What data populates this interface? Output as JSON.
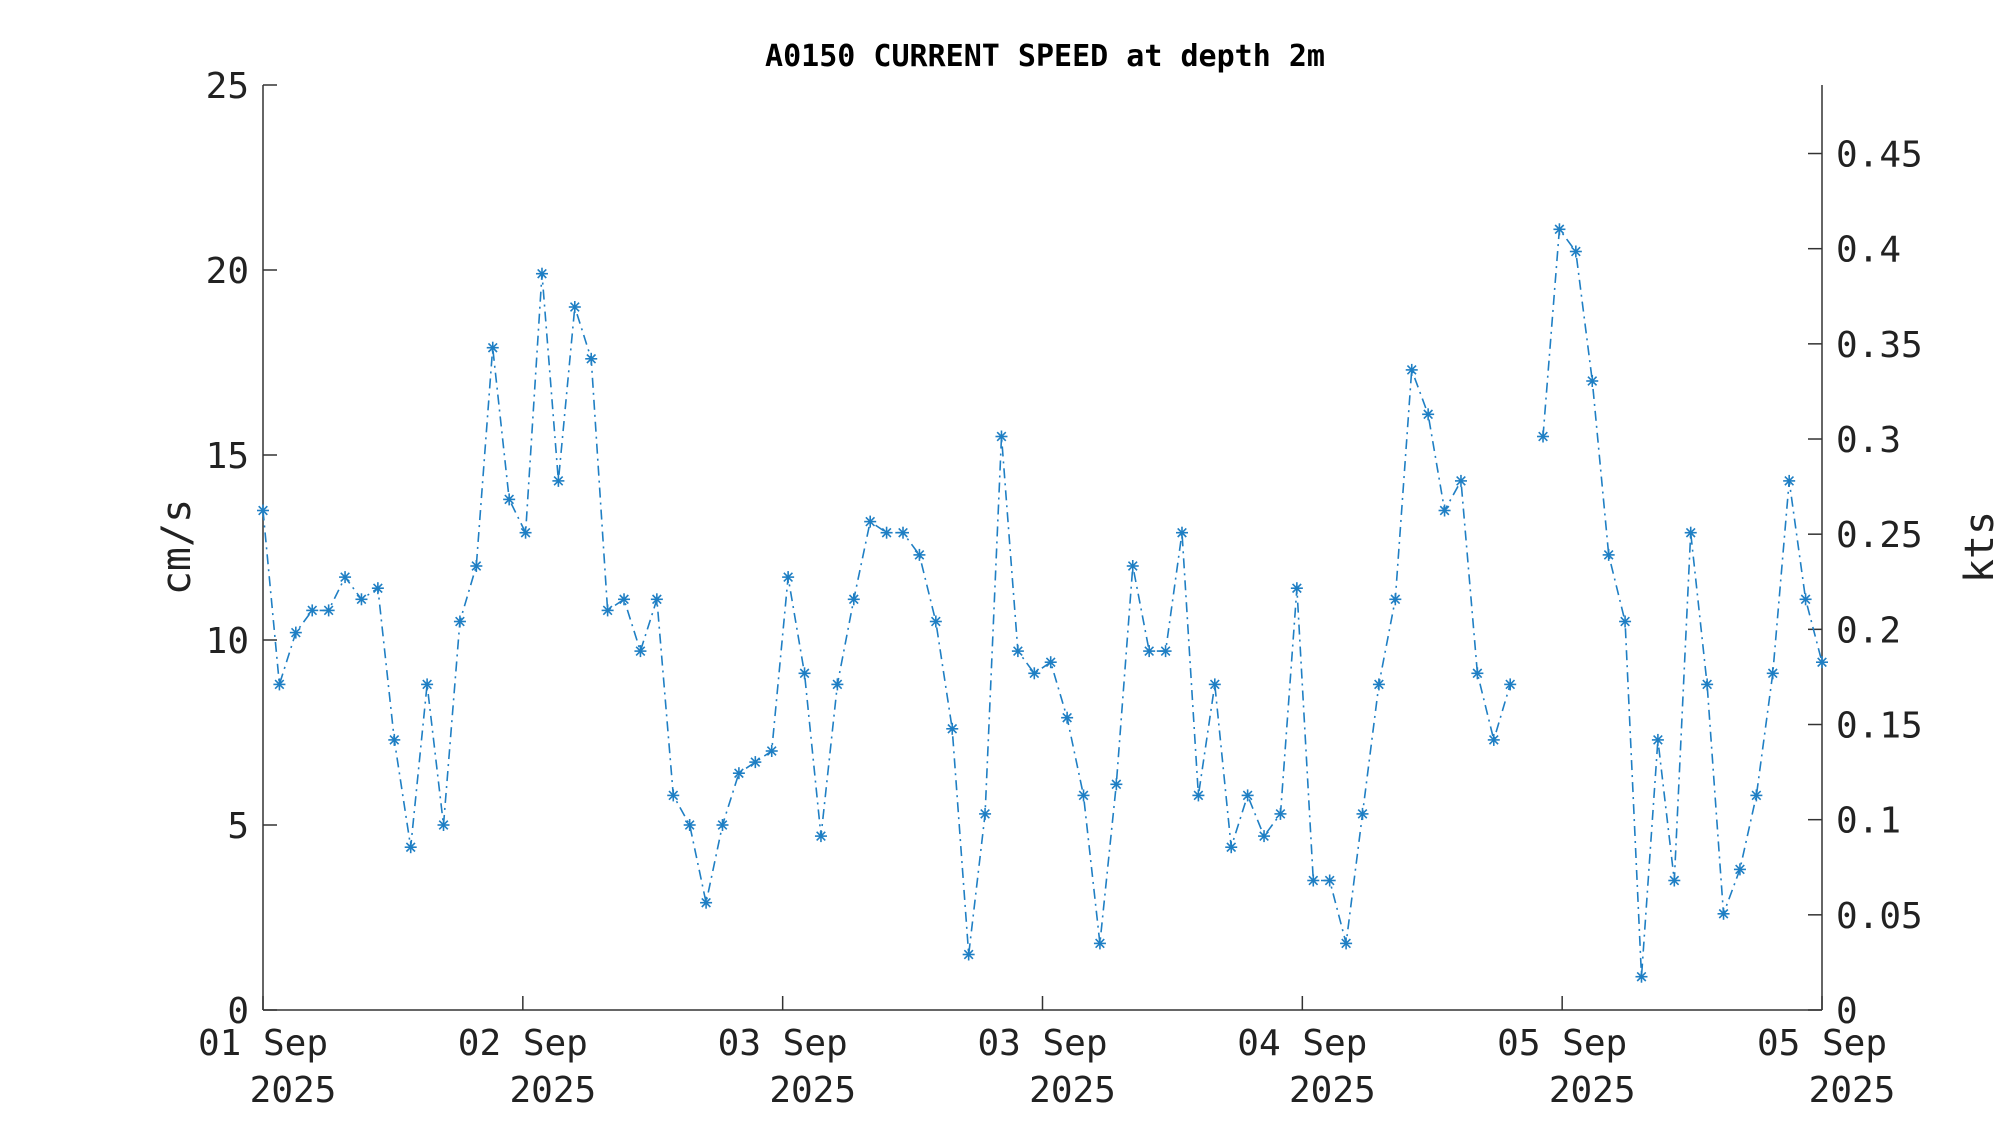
{
  "chart_data": {
    "type": "line",
    "title": "A0150 CURRENT SPEED at depth 2m",
    "ylabel": "cm/s",
    "y2label": "kts",
    "ylim": [
      0,
      25
    ],
    "y2lim": [
      0,
      0.486
    ],
    "yticks": [
      "0",
      "5",
      "10",
      "15",
      "20",
      "25"
    ],
    "y2ticks": [
      "0",
      "0.05",
      "0.1",
      "0.15",
      "0.2",
      "0.25",
      "0.3",
      "0.35",
      "0.4",
      "0.45"
    ],
    "xticks": [
      {
        "day": "01 Sep",
        "year": "2025"
      },
      {
        "day": "02 Sep",
        "year": "2025"
      },
      {
        "day": "03 Sep",
        "year": "2025"
      },
      {
        "day": "03 Sep",
        "year": "2025"
      },
      {
        "day": "04 Sep",
        "year": "2025"
      },
      {
        "day": "05 Sep",
        "year": "2025"
      },
      {
        "day": "05 Sep",
        "year": "2025"
      }
    ],
    "grid": false,
    "marker": "asterisk",
    "line_style": "dash-dot",
    "color": "#1f7fc4",
    "series": [
      {
        "values": [
          13.5,
          8.8,
          10.2,
          10.8,
          10.8,
          11.7,
          11.1,
          11.4,
          7.3,
          4.4,
          8.8,
          5.0,
          10.5,
          12.0,
          17.9,
          13.8,
          12.9,
          19.9,
          14.3,
          19.0,
          17.6,
          10.8,
          11.1,
          9.7,
          11.1,
          5.8,
          5.0,
          2.9,
          5.0,
          6.4,
          6.7,
          7.0,
          11.7,
          9.1,
          4.7,
          8.8,
          11.1,
          13.2,
          12.9,
          12.9,
          12.3,
          10.5,
          7.6,
          1.5,
          5.3,
          15.5,
          9.7,
          9.1,
          9.4,
          7.9,
          5.8,
          1.8,
          6.1,
          12.0,
          9.7,
          9.7,
          12.9,
          5.8,
          8.8,
          4.4,
          5.8,
          4.7,
          5.3,
          11.4,
          3.5,
          3.5,
          1.8,
          5.3,
          8.8,
          11.1,
          17.3,
          16.1,
          13.5,
          14.3,
          9.1,
          7.3,
          8.8,
          null,
          15.5,
          21.1,
          20.5,
          17.0,
          12.3,
          10.5,
          0.9,
          7.3,
          3.5,
          12.9,
          8.8,
          2.6,
          3.8,
          5.8,
          9.1,
          14.3,
          11.1,
          9.4
        ]
      }
    ]
  }
}
